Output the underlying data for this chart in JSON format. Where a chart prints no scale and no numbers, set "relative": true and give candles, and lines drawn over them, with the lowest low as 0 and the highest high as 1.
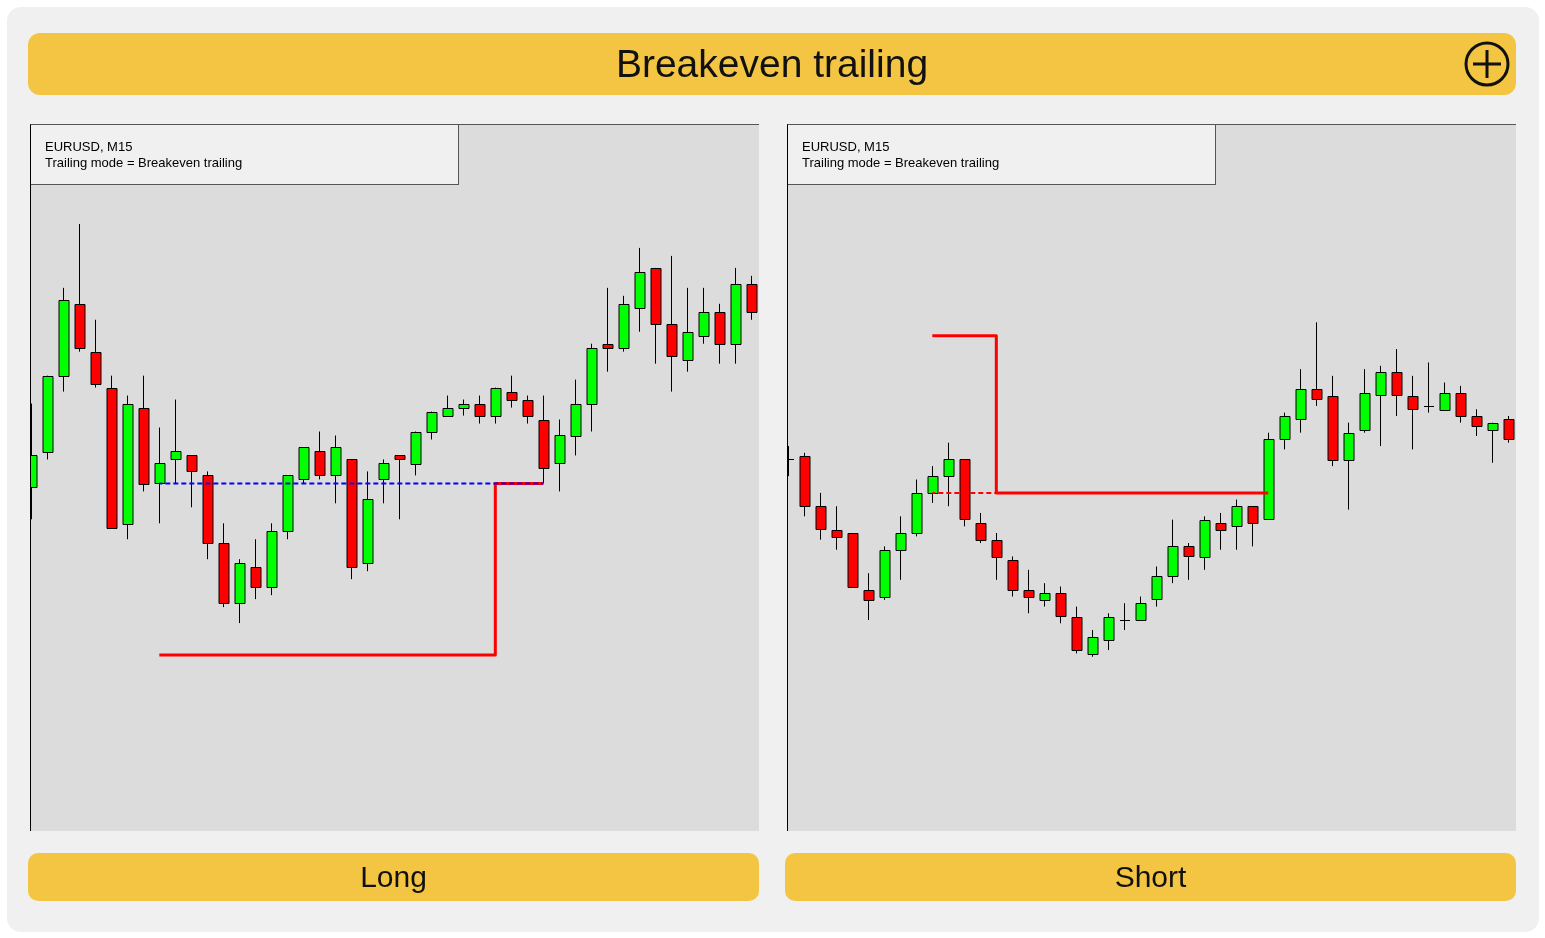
{
  "chart_data": [
    {
      "type": "other",
      "title": "Breakeven trailing"
    },
    {
      "type": "candlestick",
      "xlabel": "Long",
      "annotations": [
        "EURUSD, M15",
        "Trailing mode = Breakeven trailing"
      ],
      "relative": true,
      "categories": [
        null,
        null,
        null,
        null,
        null,
        null,
        null,
        null,
        null,
        null,
        null,
        null,
        null,
        null,
        null,
        null,
        null,
        null,
        null,
        null,
        null,
        null,
        null,
        null,
        null,
        null,
        null,
        null,
        null,
        null,
        null,
        null,
        null,
        null,
        null,
        null,
        null,
        null,
        null,
        null,
        null,
        null,
        null,
        null,
        null,
        null
      ],
      "ohlc": [
        [
          0.34,
          0.55,
          0.26,
          0.42
        ],
        [
          0.43,
          0.62,
          0.41,
          0.62
        ],
        [
          0.62,
          0.84,
          0.58,
          0.81
        ],
        [
          0.8,
          1,
          0.68,
          0.69
        ],
        [
          0.68,
          0.76,
          0.59,
          0.6
        ],
        [
          0.59,
          0.62,
          0.24,
          0.24
        ],
        [
          0.25,
          0.57,
          0.21,
          0.55
        ],
        [
          0.54,
          0.62,
          0.33,
          0.35
        ],
        [
          0.35,
          0.49,
          0.25,
          0.4
        ],
        [
          0.41,
          0.56,
          0.35,
          0.43
        ],
        [
          0.42,
          0.42,
          0.29,
          0.38
        ],
        [
          0.37,
          0.38,
          0.16,
          0.2
        ],
        [
          0.2,
          0.25,
          0.04,
          0.05
        ],
        [
          0.05,
          0.16,
          0,
          0.15
        ],
        [
          0.14,
          0.21,
          0.06,
          0.09
        ],
        [
          0.09,
          0.25,
          0.07,
          0.23
        ],
        [
          0.23,
          0.37,
          0.21,
          0.37
        ],
        [
          0.36,
          0.44,
          0.35,
          0.44
        ],
        [
          0.43,
          0.48,
          0.36,
          0.37
        ],
        [
          0.37,
          0.47,
          0.3,
          0.44
        ],
        [
          0.41,
          0.41,
          0.11,
          0.14
        ],
        [
          0.15,
          0.38,
          0.13,
          0.31
        ],
        [
          0.36,
          0.41,
          0.3,
          0.4
        ],
        [
          0.42,
          0.42,
          0.26,
          0.41
        ],
        [
          0.4,
          0.48,
          0.37,
          0.48
        ],
        [
          0.48,
          0.53,
          0.46,
          0.53
        ],
        [
          0.52,
          0.57,
          0.52,
          0.54
        ],
        [
          0.54,
          0.56,
          0.52,
          0.55
        ],
        [
          0.55,
          0.57,
          0.5,
          0.52
        ],
        [
          0.52,
          0.59,
          0.5,
          0.59
        ],
        [
          0.58,
          0.62,
          0.54,
          0.56
        ],
        [
          0.56,
          0.57,
          0.5,
          0.52
        ],
        [
          0.51,
          0.57,
          0.35,
          0.39
        ],
        [
          0.4,
          0.51,
          0.33,
          0.47
        ],
        [
          0.47,
          0.61,
          0.42,
          0.55
        ],
        [
          0.55,
          0.7,
          0.48,
          0.69
        ],
        [
          0.7,
          0.84,
          0.63,
          0.69
        ],
        [
          0.69,
          0.82,
          0.68,
          0.8
        ],
        [
          0.79,
          0.94,
          0.73,
          0.88
        ],
        [
          0.89,
          0.89,
          0.65,
          0.75
        ],
        [
          0.75,
          0.92,
          0.58,
          0.67
        ],
        [
          0.66,
          0.84,
          0.63,
          0.73
        ],
        [
          0.72,
          0.84,
          0.7,
          0.78
        ],
        [
          0.78,
          0.8,
          0.65,
          0.7
        ],
        [
          0.7,
          0.89,
          0.65,
          0.85
        ],
        [
          0.85,
          0.87,
          0.76,
          0.78
        ]
      ],
      "colors": [
        "#00ff00",
        "#00ff00",
        "#00ff00",
        "#ff0000",
        "#ff0000",
        "#ff0000",
        "#00ff00",
        "#ff0000",
        "#00ff00",
        "#00ff00",
        "#ff0000",
        "#ff0000",
        "#ff0000",
        "#00ff00",
        "#ff0000",
        "#00ff00",
        "#00ff00",
        "#00ff00",
        "#ff0000",
        "#00ff00",
        "#ff0000",
        "#00ff00",
        "#00ff00",
        "#ff0000",
        "#00ff00",
        "#00ff00",
        "#00ff00",
        "#00ff00",
        "#ff0000",
        "#00ff00",
        "#ff0000",
        "#ff0000",
        "#ff0000",
        "#00ff00",
        "#00ff00",
        "#00ff00",
        "#ff0000",
        "#00ff00",
        "#00ff00",
        "#ff0000",
        "#ff0000",
        "#00ff00",
        "#00ff00",
        "#ff0000",
        "#00ff00",
        "#ff0000"
      ],
      "series": [
        {
          "type": "step",
          "color": "#ff0000",
          "values": [
            null,
            null,
            null,
            null,
            null,
            null,
            null,
            null,
            -0.08,
            -0.08,
            -0.08,
            -0.08,
            -0.08,
            -0.08,
            -0.08,
            -0.08,
            -0.08,
            -0.08,
            -0.08,
            -0.08,
            -0.08,
            -0.08,
            -0.08,
            -0.08,
            -0.08,
            -0.08,
            -0.08,
            -0.08,
            -0.08,
            0.35,
            0.35,
            0.35,
            0.35,
            null,
            null,
            null,
            null,
            null,
            null,
            null,
            null,
            null,
            null,
            null,
            null,
            null
          ]
        },
        {
          "type": "line",
          "color": "#0000ff",
          "line_style": "dashed",
          "values": [
            null,
            null,
            null,
            null,
            null,
            null,
            null,
            null,
            0.35,
            0.35,
            0.35,
            0.35,
            0.35,
            0.35,
            0.35,
            0.35,
            0.35,
            0.35,
            0.35,
            0.35,
            0.35,
            0.35,
            0.35,
            0.35,
            0.35,
            0.35,
            0.35,
            0.35,
            0.35,
            0.35,
            0.35,
            0.35,
            0.35,
            null,
            null,
            null,
            null,
            null,
            null,
            null,
            null,
            null,
            null,
            null,
            null,
            null
          ]
        }
      ]
    },
    {
      "type": "candlestick",
      "xlabel": "Short",
      "annotations": [
        "EURUSD, M15",
        "Trailing mode = Breakeven trailing"
      ],
      "relative": true,
      "categories": [
        null,
        null,
        null,
        null,
        null,
        null,
        null,
        null,
        null,
        null,
        null,
        null,
        null,
        null,
        null,
        null,
        null,
        null,
        null,
        null,
        null,
        null,
        null,
        null,
        null,
        null,
        null,
        null,
        null,
        null,
        null,
        null,
        null,
        null,
        null,
        null,
        null,
        null,
        null,
        null,
        null,
        null,
        null,
        null,
        null,
        null
      ],
      "ohlc": [
        [
          0.59,
          0.63,
          0.54,
          0.59
        ],
        [
          0.6,
          0.61,
          0.42,
          0.45
        ],
        [
          0.45,
          0.49,
          0.35,
          0.38
        ],
        [
          0.38,
          0.45,
          0.32,
          0.36
        ],
        [
          0.37,
          0.37,
          0.21,
          0.21
        ],
        [
          0.2,
          0.25,
          0.11,
          0.17
        ],
        [
          0.18,
          0.33,
          0.17,
          0.32
        ],
        [
          0.32,
          0.42,
          0.23,
          0.37
        ],
        [
          0.37,
          0.53,
          0.36,
          0.49
        ],
        [
          0.49,
          0.57,
          0.46,
          0.54
        ],
        [
          0.54,
          0.64,
          0.45,
          0.59
        ],
        [
          0.59,
          0.59,
          0.39,
          0.41
        ],
        [
          0.4,
          0.43,
          0.34,
          0.35
        ],
        [
          0.35,
          0.37,
          0.23,
          0.3
        ],
        [
          0.29,
          0.3,
          0.18,
          0.2
        ],
        [
          0.2,
          0.26,
          0.13,
          0.18
        ],
        [
          0.17,
          0.22,
          0.15,
          0.19
        ],
        [
          0.19,
          0.21,
          0.1,
          0.12
        ],
        [
          0.12,
          0.15,
          0.01,
          0.02
        ],
        [
          0.01,
          0.08,
          0,
          0.06
        ],
        [
          0.05,
          0.13,
          0.02,
          0.12
        ],
        [
          0.11,
          0.16,
          0.08,
          0.11
        ],
        [
          0.11,
          0.18,
          0.11,
          0.16
        ],
        [
          0.17,
          0.27,
          0.15,
          0.24
        ],
        [
          0.24,
          0.41,
          0.22,
          0.33
        ],
        [
          0.33,
          0.34,
          0.23,
          0.3
        ],
        [
          0.3,
          0.42,
          0.26,
          0.41
        ],
        [
          0.4,
          0.43,
          0.32,
          0.38
        ],
        [
          0.39,
          0.47,
          0.32,
          0.45
        ],
        [
          0.45,
          0.45,
          0.33,
          0.4
        ],
        [
          0.41,
          0.67,
          0.41,
          0.65
        ],
        [
          0.65,
          0.73,
          0.62,
          0.72
        ],
        [
          0.71,
          0.86,
          0.67,
          0.8
        ],
        [
          0.8,
          1,
          0.75,
          0.77
        ],
        [
          0.78,
          0.84,
          0.57,
          0.59
        ],
        [
          0.59,
          0.7,
          0.44,
          0.67
        ],
        [
          0.68,
          0.86,
          0.67,
          0.79
        ],
        [
          0.78,
          0.87,
          0.63,
          0.85
        ],
        [
          0.85,
          0.92,
          0.72,
          0.78
        ],
        [
          0.78,
          0.84,
          0.62,
          0.74
        ],
        [
          0.75,
          0.88,
          0.73,
          0.75
        ],
        [
          0.74,
          0.82,
          0.74,
          0.79
        ],
        [
          0.79,
          0.81,
          0.7,
          0.72
        ],
        [
          0.72,
          0.74,
          0.66,
          0.69
        ],
        [
          0.68,
          0.7,
          0.58,
          0.7
        ],
        [
          0.71,
          0.72,
          0.64,
          0.65
        ]
      ],
      "colors": [
        "#000000",
        "#ff0000",
        "#ff0000",
        "#ff0000",
        "#ff0000",
        "#ff0000",
        "#00ff00",
        "#00ff00",
        "#00ff00",
        "#00ff00",
        "#00ff00",
        "#ff0000",
        "#ff0000",
        "#ff0000",
        "#ff0000",
        "#ff0000",
        "#00ff00",
        "#ff0000",
        "#ff0000",
        "#00ff00",
        "#00ff00",
        "#000000",
        "#00ff00",
        "#00ff00",
        "#00ff00",
        "#ff0000",
        "#00ff00",
        "#ff0000",
        "#00ff00",
        "#ff0000",
        "#00ff00",
        "#00ff00",
        "#00ff00",
        "#ff0000",
        "#ff0000",
        "#00ff00",
        "#00ff00",
        "#00ff00",
        "#ff0000",
        "#ff0000",
        "#000000",
        "#00ff00",
        "#ff0000",
        "#ff0000",
        "#00ff00",
        "#ff0000"
      ],
      "series": [
        {
          "type": "step",
          "color": "#ff0000",
          "values": [
            null,
            null,
            null,
            null,
            null,
            null,
            null,
            null,
            null,
            0.96,
            0.96,
            0.96,
            0.96,
            0.49,
            0.49,
            0.49,
            0.49,
            0.49,
            0.49,
            0.49,
            0.49,
            0.49,
            0.49,
            0.49,
            0.49,
            0.49,
            0.49,
            0.49,
            0.49,
            0.49,
            0.49,
            null,
            null,
            null,
            null,
            null,
            null,
            null,
            null,
            null,
            null,
            null,
            null,
            null,
            null,
            null
          ]
        },
        {
          "type": "line",
          "color": "#ff0000",
          "line_style": "dashed",
          "values": [
            null,
            null,
            null,
            null,
            null,
            null,
            null,
            null,
            null,
            0.49,
            0.49,
            0.49,
            0.49,
            0.49,
            null,
            null,
            null,
            null,
            null,
            null,
            null,
            null,
            null,
            null,
            null,
            null,
            null,
            null,
            null,
            null,
            null,
            null,
            null,
            null,
            null,
            null,
            null,
            null,
            null,
            null,
            null,
            null,
            null,
            null,
            null,
            null
          ]
        }
      ]
    }
  ]
}
